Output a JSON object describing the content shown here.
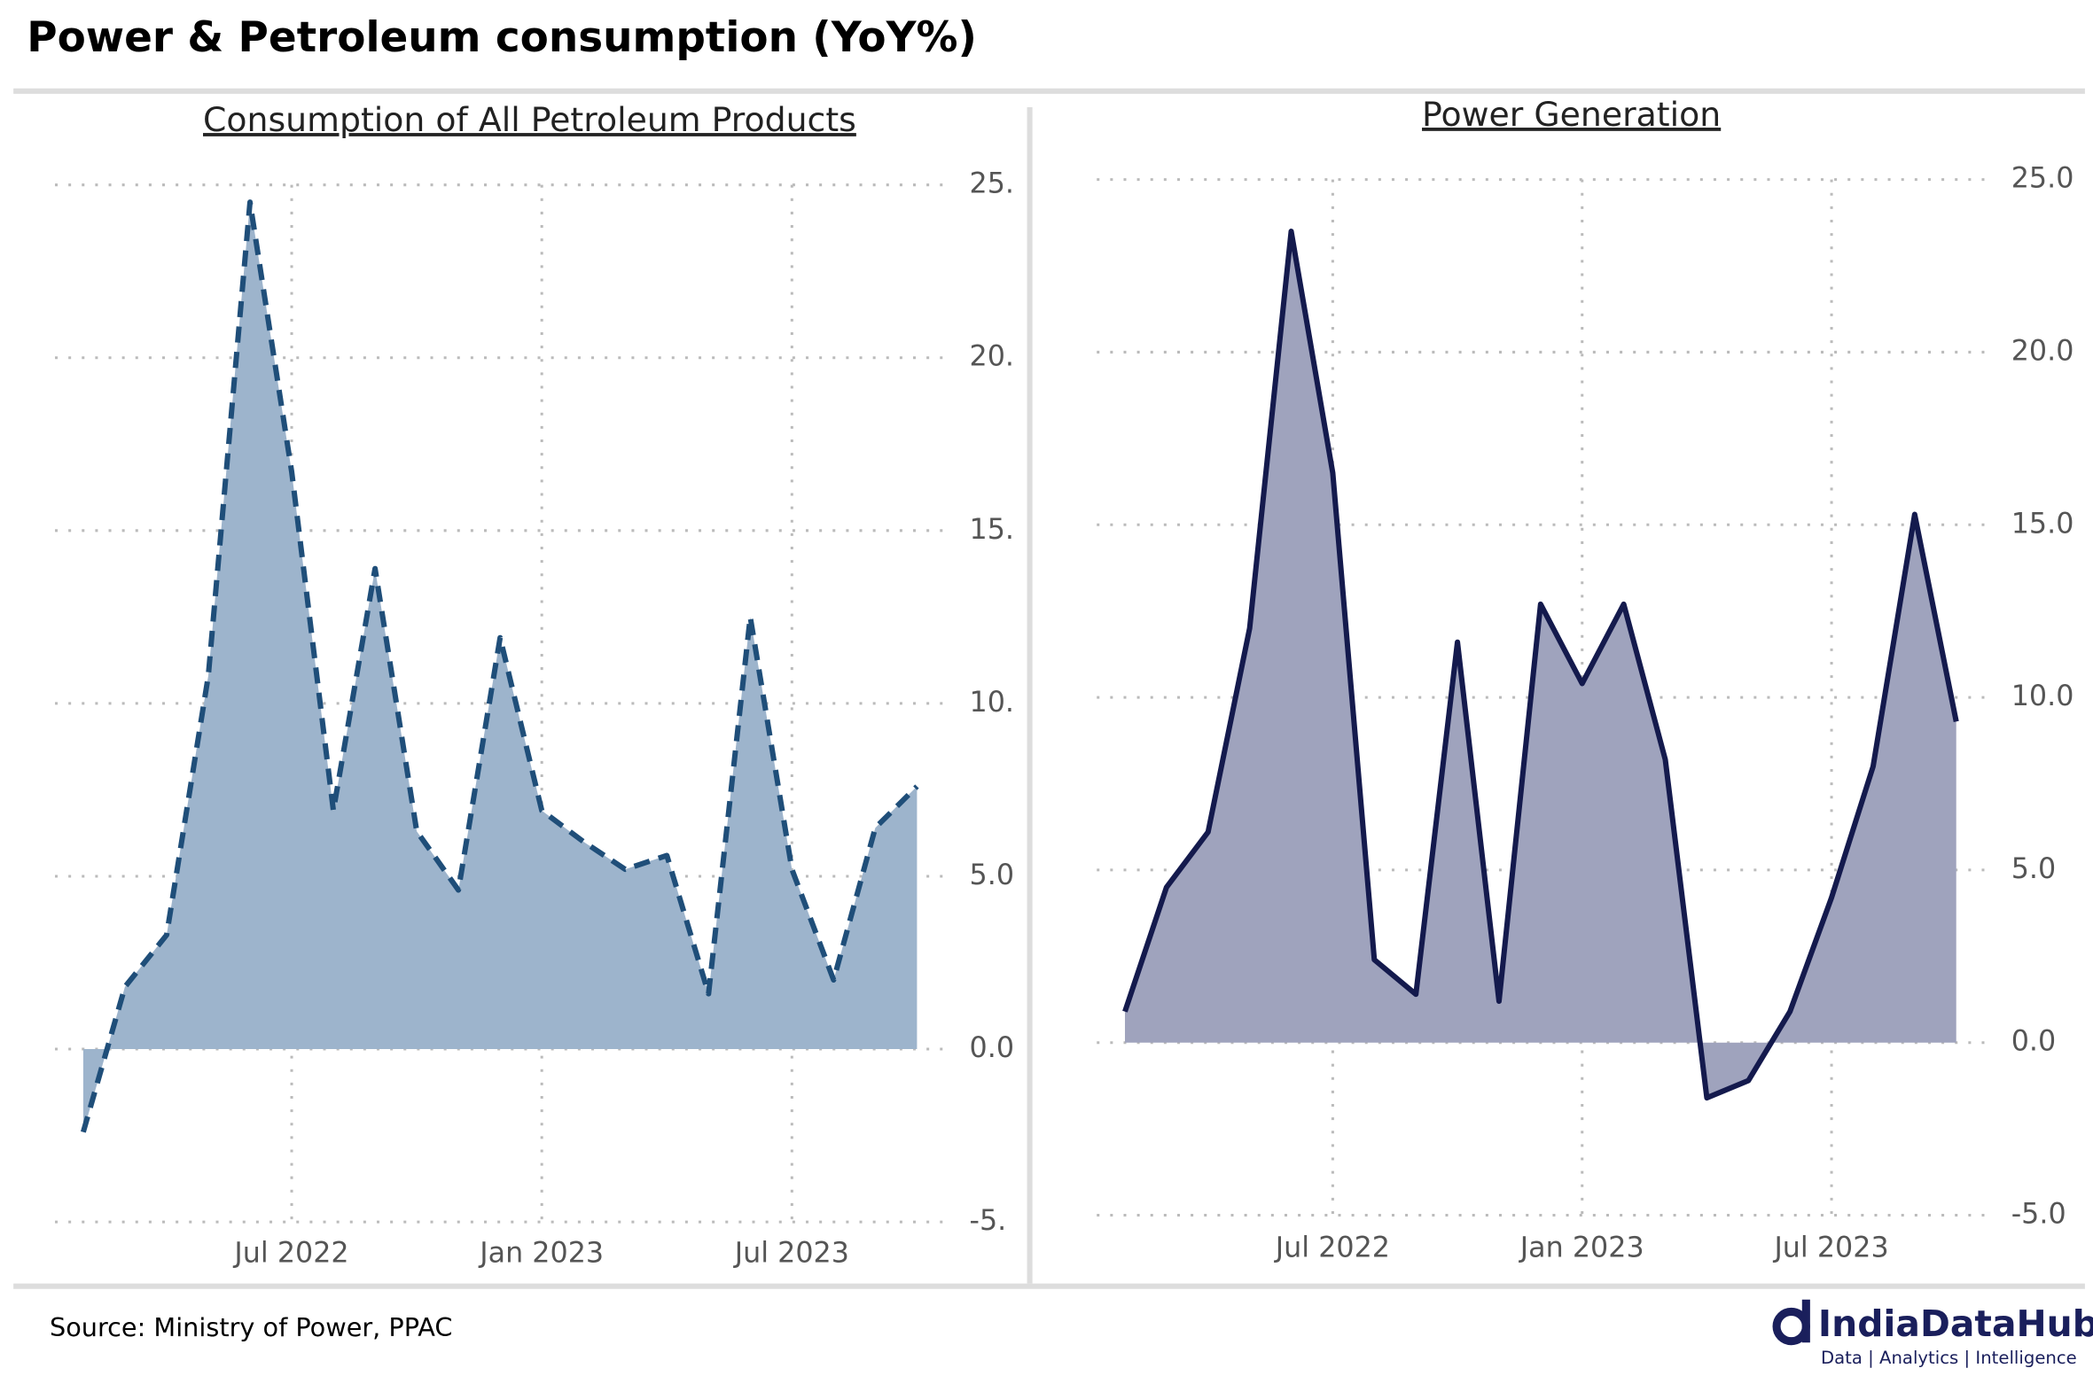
{
  "title": "Power & Petroleum consumption (YoY%)",
  "source": "Source: Ministry of Power, PPAC",
  "logo": {
    "name": "IndiaDataHub",
    "tagline": "Data | Analytics | Intelligence"
  },
  "chart_data": [
    {
      "type": "area",
      "title": "Consumption of All Petroleum Products",
      "x": [
        "2022-02",
        "2022-03",
        "2022-04",
        "2022-05",
        "2022-06",
        "2022-07",
        "2022-08",
        "2022-09",
        "2022-10",
        "2022-11",
        "2022-12",
        "2023-01",
        "2023-02",
        "2023-03",
        "2023-04",
        "2023-05",
        "2023-06",
        "2023-07",
        "2023-08",
        "2023-09",
        "2023-10"
      ],
      "series": [
        {
          "color": "#1f4e79",
          "fill": "#9db4cc",
          "dashed": true,
          "values": [
            -2.4,
            1.8,
            3.3,
            10.8,
            24.5,
            16.7,
            6.9,
            13.9,
            6.3,
            4.6,
            11.9,
            6.9,
            6.0,
            5.2,
            5.6,
            1.6,
            12.5,
            5.2,
            2.0,
            6.4,
            7.6
          ]
        }
      ],
      "xlim": [
        "2022-01",
        "2023-11"
      ],
      "xticks": [
        {
          "value": "2022-07",
          "label": "Jul 2022"
        },
        {
          "value": "2023-01",
          "label": "Jan 2023"
        },
        {
          "value": "2023-07",
          "label": "Jul 2023"
        }
      ],
      "ylim": [
        -5,
        25
      ],
      "yticks": [
        {
          "value": -5,
          "label": "-5."
        },
        {
          "value": 0,
          "label": "0.0"
        },
        {
          "value": 5,
          "label": "5.0"
        },
        {
          "value": 10,
          "label": "10."
        },
        {
          "value": 15,
          "label": "15."
        },
        {
          "value": 20,
          "label": "20."
        },
        {
          "value": 25,
          "label": "25."
        }
      ],
      "grid": true
    },
    {
      "type": "area",
      "title": "Power Generation",
      "x": [
        "2022-02",
        "2022-03",
        "2022-04",
        "2022-05",
        "2022-06",
        "2022-07",
        "2022-08",
        "2022-09",
        "2022-10",
        "2022-11",
        "2022-12",
        "2023-01",
        "2023-02",
        "2023-03",
        "2023-04",
        "2023-05",
        "2023-06",
        "2023-07",
        "2023-08",
        "2023-09",
        "2023-10"
      ],
      "series": [
        {
          "color": "#141a4d",
          "fill": "#9fa3bd",
          "dashed": false,
          "values": [
            0.9,
            4.5,
            6.1,
            12.0,
            23.5,
            16.5,
            2.4,
            1.4,
            11.6,
            1.2,
            12.7,
            10.4,
            12.7,
            8.2,
            -1.6,
            -1.1,
            0.9,
            4.2,
            8.0,
            15.3,
            9.3
          ]
        }
      ],
      "xlim": [
        "2022-01",
        "2023-11"
      ],
      "xticks": [
        {
          "value": "2022-07",
          "label": "Jul 2022"
        },
        {
          "value": "2023-01",
          "label": "Jan 2023"
        },
        {
          "value": "2023-07",
          "label": "Jul 2023"
        }
      ],
      "ylim": [
        -5,
        25
      ],
      "yticks": [
        {
          "value": -5,
          "label": "-5.0"
        },
        {
          "value": 0,
          "label": "0.0"
        },
        {
          "value": 5,
          "label": "5.0"
        },
        {
          "value": 10,
          "label": "10.0"
        },
        {
          "value": 15,
          "label": "15.0"
        },
        {
          "value": 20,
          "label": "20.0"
        },
        {
          "value": 25,
          "label": "25.0"
        }
      ],
      "grid": true
    }
  ]
}
